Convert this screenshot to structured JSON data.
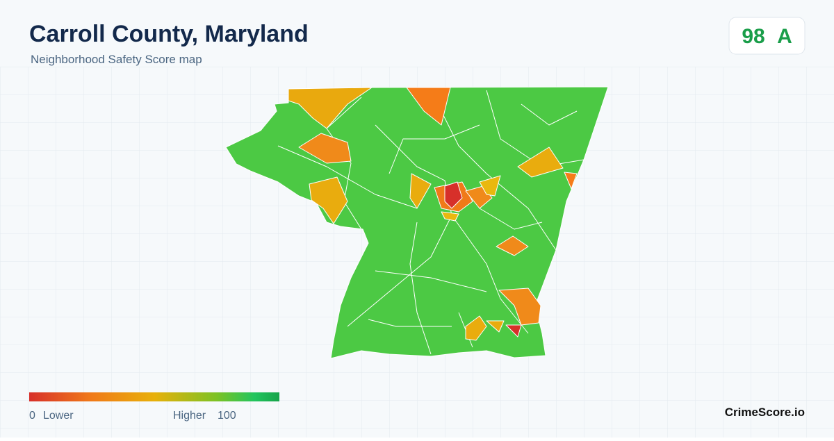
{
  "header": {
    "title": "Carroll County, Maryland",
    "subtitle": "Neighborhood Safety Score map"
  },
  "score": {
    "value": 98,
    "grade": "A"
  },
  "legend": {
    "min": 0,
    "min_label": "Lower",
    "max_label": "Higher",
    "max": 100
  },
  "footer": {
    "brand": "CrimeScore.io"
  }
}
